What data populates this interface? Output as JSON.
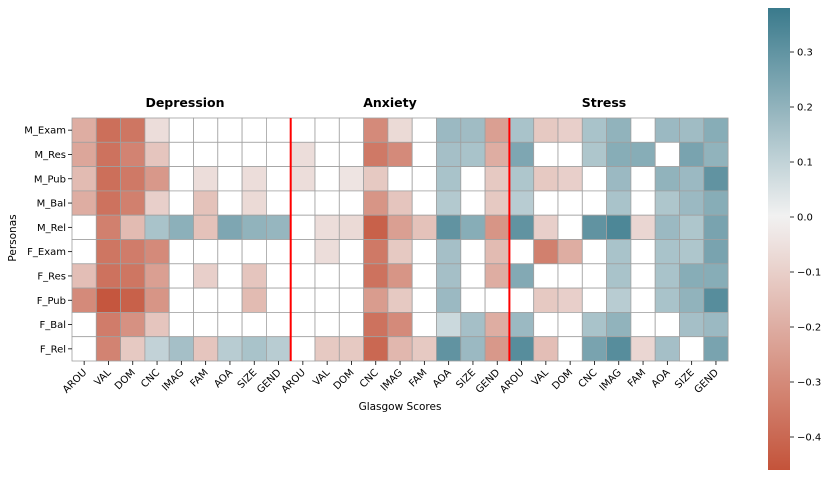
{
  "chart_data": {
    "type": "heatmap",
    "xlabel": "Glasgow Scores",
    "ylabel": "Personas",
    "groups": [
      "Depression",
      "Anxiety",
      "Stress"
    ],
    "columns": [
      "AROU",
      "VAL",
      "DOM",
      "CNC",
      "IMAG",
      "FAM",
      "AOA",
      "SIZE",
      "GEND"
    ],
    "rows": [
      "M_Exam",
      "M_Res",
      "M_Pub",
      "M_Bal",
      "M_Rel",
      "F_Exam",
      "F_Res",
      "F_Pub",
      "F_Bal",
      "F_Rel"
    ],
    "colorbar": {
      "vmin": -0.46,
      "vmax": 0.38,
      "ticks": [
        -0.4,
        -0.3,
        -0.2,
        -0.1,
        0.0,
        0.1,
        0.2,
        0.3
      ],
      "tick_labels": [
        "−0.4",
        "−0.3",
        "−0.2",
        "−0.1",
        "0.0",
        "0.1",
        "0.2",
        "0.3"
      ],
      "low_color": "#c4533a",
      "mid_color": "#f2f2f2",
      "high_color": "#3a7a8c"
    },
    "separator_color": "#ff0000",
    "values": [
      [
        -0.2,
        -0.38,
        -0.36,
        -0.06,
        0,
        0,
        0,
        0,
        0,
        0,
        0,
        0,
        -0.3,
        -0.07,
        0,
        0.18,
        0.17,
        -0.24,
        0.15,
        -0.12,
        -0.1,
        0.15,
        0.2,
        0,
        0.18,
        0.17,
        0.22
      ],
      [
        -0.22,
        -0.37,
        -0.32,
        -0.13,
        0,
        0,
        0,
        0,
        0,
        -0.06,
        0,
        0,
        -0.35,
        -0.3,
        0,
        0.16,
        0.15,
        -0.2,
        0.24,
        0,
        0,
        0.14,
        0.22,
        0.22,
        0,
        0.25,
        0.2
      ],
      [
        -0.16,
        -0.38,
        -0.35,
        -0.26,
        0,
        -0.06,
        0,
        -0.06,
        0,
        -0.06,
        0,
        -0.04,
        -0.12,
        0,
        0,
        0.15,
        0,
        -0.12,
        0.14,
        -0.12,
        -0.1,
        0,
        0.18,
        0,
        0.2,
        0.18,
        0.3
      ],
      [
        -0.2,
        -0.37,
        -0.33,
        -0.1,
        0,
        -0.14,
        0,
        -0.07,
        0,
        0,
        0,
        0,
        -0.27,
        -0.13,
        0,
        0.13,
        0,
        -0.12,
        0.12,
        0,
        0,
        0,
        0.15,
        0,
        0.14,
        0.18,
        0.22
      ],
      [
        0,
        -0.33,
        -0.16,
        0.15,
        0.21,
        -0.14,
        0.24,
        0.2,
        0.19,
        0,
        -0.06,
        -0.07,
        -0.42,
        -0.24,
        -0.14,
        0.3,
        0.22,
        -0.27,
        0.3,
        -0.1,
        0,
        0.3,
        0.34,
        -0.08,
        0.18,
        0.14,
        0.25
      ],
      [
        0,
        -0.36,
        -0.34,
        -0.3,
        0,
        0,
        0,
        0,
        0,
        0,
        -0.06,
        0,
        -0.35,
        -0.12,
        0,
        0.16,
        0,
        -0.16,
        0,
        -0.33,
        -0.2,
        0,
        0.15,
        0,
        0.15,
        0.14,
        0.25
      ],
      [
        -0.15,
        -0.37,
        -0.36,
        -0.24,
        0,
        -0.1,
        0,
        -0.13,
        0,
        0,
        0,
        0,
        -0.37,
        -0.27,
        0,
        0.16,
        0,
        -0.2,
        0.23,
        0,
        0,
        0,
        0.15,
        0,
        0.15,
        0.22,
        0.22
      ],
      [
        -0.3,
        -0.45,
        -0.42,
        -0.27,
        0,
        0,
        0,
        -0.16,
        0,
        0,
        0,
        0,
        -0.25,
        -0.12,
        0,
        0.18,
        0,
        0,
        0,
        -0.12,
        -0.1,
        0,
        0.12,
        0,
        0.15,
        0.2,
        0.32
      ],
      [
        0,
        -0.34,
        -0.28,
        -0.13,
        0,
        0,
        0,
        0,
        0,
        0,
        0,
        0,
        -0.37,
        -0.3,
        0,
        0.08,
        0.16,
        -0.2,
        0.18,
        0,
        0,
        0.15,
        0.2,
        0,
        0,
        0.16,
        0.18
      ],
      [
        0,
        -0.32,
        -0.12,
        0.1,
        0.16,
        -0.13,
        0.12,
        0.15,
        0.12,
        0,
        -0.12,
        -0.12,
        -0.4,
        -0.17,
        -0.12,
        0.3,
        0.18,
        -0.26,
        0.32,
        -0.15,
        0,
        0.25,
        0.32,
        -0.08,
        0.16,
        0,
        0.25
      ]
    ]
  }
}
